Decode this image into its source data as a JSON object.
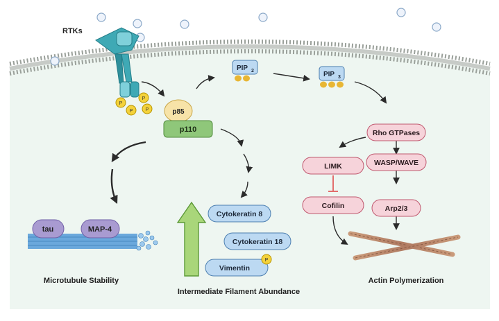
{
  "labels": {
    "rtks": "RTKs",
    "pip2": "PIP",
    "pip2_sub": "2",
    "pip3": "PIP",
    "pip3_sub": "3",
    "p85": "p85",
    "p110": "p110",
    "phospho": "P",
    "tau": "tau",
    "map4": "MAP-4",
    "microtubule_stability": "Microtubule Stability",
    "cytokeratin8": "Cytokeratin 8",
    "cytokeratin18": "Cytokeratin 18",
    "vimentin": "Vimentin",
    "intermediate_filament": "Intermediate Filament Abundance",
    "rho_gtpases": "Rho GTPases",
    "limk": "LIMK",
    "cofilin": "Cofilin",
    "wasp_wave": "WASP/WAVE",
    "arp23": "Arp2/3",
    "actin_polymerization": "Actin Polymerization"
  },
  "colors": {
    "cytoplasm": "#eef6f1",
    "membrane": "#8f958f",
    "receptor": "#3fa9b5",
    "phospho": "#f4d23b",
    "p85": "#f7e3a8",
    "p110": "#8fc77a",
    "pip_box": "#bcd9f2",
    "lipid_head": "#e8b634",
    "blue_pill": "#bcd9f2",
    "purple_pill": "#a99bd1",
    "pink_pill": "#f6d3da",
    "arrow": "#2b2b2b",
    "inhibit": "#e04c4c",
    "big_arrow": "#a9d67a"
  }
}
